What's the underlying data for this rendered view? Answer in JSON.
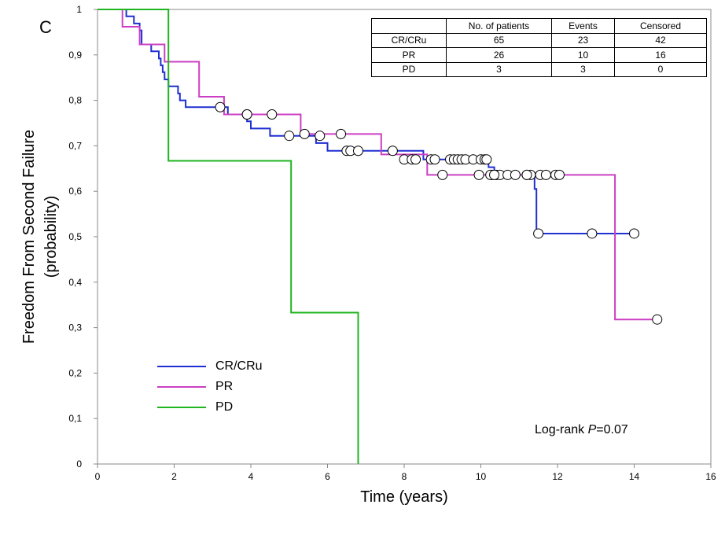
{
  "panel_label": "C",
  "logrank": {
    "prefix": "Log-rank ",
    "p_symbol": "P",
    "suffix": "=0.07"
  },
  "table": {
    "headers": [
      "",
      "No. of patients",
      "Events",
      "Censored"
    ],
    "rows": [
      [
        "CR/CRu",
        "65",
        "23",
        "42"
      ],
      [
        "PR",
        "26",
        "10",
        "16"
      ],
      [
        "PD",
        "3",
        "3",
        "0"
      ]
    ]
  },
  "chart_data": {
    "type": "line",
    "subtype": "kaplan-meier step",
    "ylabel": [
      "Freedom From Second Failure",
      "(probability)"
    ],
    "xlabel": "Time (years)",
    "xlim": [
      0,
      16
    ],
    "ylim": [
      0,
      1
    ],
    "x_ticks": [
      "0",
      "2",
      "4",
      "6",
      "8",
      "10",
      "12",
      "14",
      "16"
    ],
    "y_ticks": [
      "0",
      "0,1",
      "0,2",
      "0,3",
      "0,4",
      "0,5",
      "0,6",
      "0,7",
      "0,8",
      "0,9",
      "1"
    ],
    "grid": false,
    "legend_position": "bottom-left",
    "series": [
      {
        "name": "CR/CRu",
        "color": "#1f2fd1",
        "steps": [
          [
            0,
            1
          ],
          [
            0.75,
            1
          ],
          [
            0.75,
            0.985
          ],
          [
            0.95,
            0.985
          ],
          [
            0.95,
            0.969
          ],
          [
            1.1,
            0.969
          ],
          [
            1.1,
            0.954
          ],
          [
            1.15,
            0.954
          ],
          [
            1.15,
            0.923
          ],
          [
            1.4,
            0.923
          ],
          [
            1.4,
            0.908
          ],
          [
            1.6,
            0.908
          ],
          [
            1.6,
            0.892
          ],
          [
            1.65,
            0.892
          ],
          [
            1.65,
            0.877
          ],
          [
            1.7,
            0.877
          ],
          [
            1.7,
            0.862
          ],
          [
            1.75,
            0.862
          ],
          [
            1.75,
            0.846
          ],
          [
            1.85,
            0.846
          ],
          [
            1.85,
            0.831
          ],
          [
            2.1,
            0.831
          ],
          [
            2.1,
            0.815
          ],
          [
            2.15,
            0.815
          ],
          [
            2.15,
            0.8
          ],
          [
            2.3,
            0.8
          ],
          [
            2.3,
            0.785
          ],
          [
            3.4,
            0.785
          ],
          [
            3.4,
            0.769
          ],
          [
            3.9,
            0.769
          ],
          [
            3.9,
            0.754
          ],
          [
            4.0,
            0.754
          ],
          [
            4.0,
            0.738
          ],
          [
            4.5,
            0.738
          ],
          [
            4.5,
            0.722
          ],
          [
            5.7,
            0.722
          ],
          [
            5.7,
            0.706
          ],
          [
            6.0,
            0.706
          ],
          [
            6.0,
            0.689
          ],
          [
            8.5,
            0.689
          ],
          [
            8.5,
            0.67
          ],
          [
            10.2,
            0.67
          ],
          [
            10.2,
            0.653
          ],
          [
            10.35,
            0.653
          ],
          [
            10.35,
            0.636
          ],
          [
            11.4,
            0.636
          ],
          [
            11.4,
            0.605
          ],
          [
            11.45,
            0.605
          ],
          [
            11.45,
            0.507
          ],
          [
            14.0,
            0.507
          ]
        ],
        "censored": [
          [
            3.2,
            0.785
          ],
          [
            3.9,
            0.769
          ],
          [
            5.0,
            0.722
          ],
          [
            5.8,
            0.722
          ],
          [
            6.5,
            0.689
          ],
          [
            6.6,
            0.689
          ],
          [
            6.8,
            0.689
          ],
          [
            7.7,
            0.689
          ],
          [
            8.0,
            0.67
          ],
          [
            8.2,
            0.67
          ],
          [
            8.3,
            0.67
          ],
          [
            8.7,
            0.67
          ],
          [
            8.8,
            0.67
          ],
          [
            9.2,
            0.67
          ],
          [
            9.3,
            0.67
          ],
          [
            9.4,
            0.67
          ],
          [
            9.5,
            0.67
          ],
          [
            9.6,
            0.67
          ],
          [
            9.8,
            0.67
          ],
          [
            10.0,
            0.67
          ],
          [
            10.1,
            0.67
          ],
          [
            10.15,
            0.67
          ],
          [
            10.3,
            0.636
          ],
          [
            10.4,
            0.636
          ],
          [
            10.5,
            0.636
          ],
          [
            10.7,
            0.636
          ],
          [
            11.2,
            0.636
          ],
          [
            11.3,
            0.636
          ],
          [
            11.5,
            0.507
          ],
          [
            12.9,
            0.507
          ],
          [
            14.0,
            0.507
          ]
        ]
      },
      {
        "name": "PR",
        "color": "#cc3fc4",
        "steps": [
          [
            0,
            1
          ],
          [
            0.65,
            1
          ],
          [
            0.65,
            0.962
          ],
          [
            1.1,
            0.962
          ],
          [
            1.1,
            0.923
          ],
          [
            1.75,
            0.923
          ],
          [
            1.75,
            0.885
          ],
          [
            2.65,
            0.885
          ],
          [
            2.65,
            0.808
          ],
          [
            3.3,
            0.808
          ],
          [
            3.3,
            0.769
          ],
          [
            5.3,
            0.769
          ],
          [
            5.3,
            0.726
          ],
          [
            7.4,
            0.726
          ],
          [
            7.4,
            0.681
          ],
          [
            8.6,
            0.681
          ],
          [
            8.6,
            0.636
          ],
          [
            13.5,
            0.636
          ],
          [
            13.5,
            0.318
          ],
          [
            14.6,
            0.318
          ]
        ],
        "censored": [
          [
            3.9,
            0.769
          ],
          [
            4.55,
            0.769
          ],
          [
            5.4,
            0.726
          ],
          [
            6.35,
            0.726
          ],
          [
            9.0,
            0.636
          ],
          [
            9.95,
            0.636
          ],
          [
            10.25,
            0.636
          ],
          [
            10.35,
            0.636
          ],
          [
            10.9,
            0.636
          ],
          [
            11.2,
            0.636
          ],
          [
            11.55,
            0.636
          ],
          [
            11.7,
            0.636
          ],
          [
            11.95,
            0.636
          ],
          [
            12.05,
            0.636
          ],
          [
            14.6,
            0.318
          ]
        ]
      },
      {
        "name": "PD",
        "color": "#1fb51f",
        "steps": [
          [
            0,
            1
          ],
          [
            1.85,
            1
          ],
          [
            1.85,
            0.667
          ],
          [
            5.05,
            0.667
          ],
          [
            5.05,
            0.333
          ],
          [
            6.8,
            0.333
          ],
          [
            6.8,
            0
          ]
        ],
        "censored": []
      }
    ]
  }
}
